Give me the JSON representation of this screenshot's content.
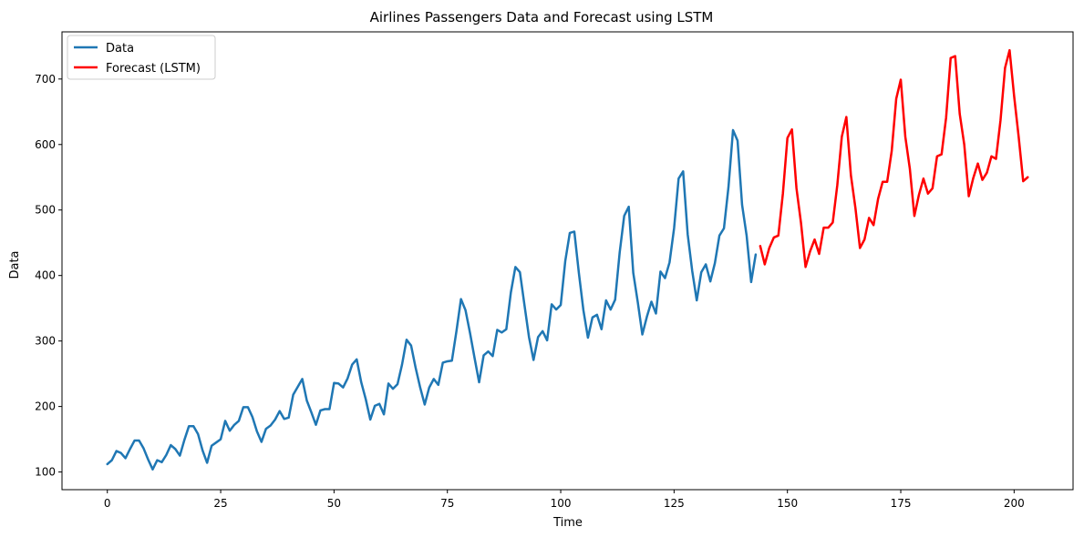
{
  "chart_data": {
    "type": "line",
    "title": "Airlines Passengers Data and Forecast using LSTM",
    "xlabel": "Time",
    "ylabel": "Data",
    "xlim": [
      -10,
      213
    ],
    "ylim": [
      73,
      772
    ],
    "xticks": [
      0,
      25,
      50,
      75,
      100,
      125,
      150,
      175,
      200
    ],
    "yticks": [
      100,
      200,
      300,
      400,
      500,
      600,
      700
    ],
    "grid": false,
    "legend_position": "top-left",
    "series": [
      {
        "name": "Data",
        "color": "#1f77b4",
        "x_start": 0,
        "values": [
          112,
          118,
          132,
          129,
          121,
          135,
          148,
          148,
          136,
          119,
          104,
          118,
          115,
          126,
          141,
          135,
          125,
          149,
          170,
          170,
          158,
          133,
          114,
          140,
          145,
          150,
          178,
          163,
          172,
          178,
          199,
          199,
          184,
          162,
          146,
          166,
          171,
          180,
          193,
          181,
          183,
          218,
          230,
          242,
          209,
          191,
          172,
          194,
          196,
          196,
          236,
          235,
          229,
          243,
          264,
          272,
          237,
          211,
          180,
          201,
          204,
          188,
          235,
          227,
          234,
          264,
          302,
          293,
          259,
          229,
          203,
          229,
          242,
          233,
          267,
          269,
          270,
          315,
          364,
          347,
          312,
          274,
          237,
          278,
          284,
          277,
          317,
          313,
          318,
          374,
          413,
          405,
          355,
          306,
          271,
          306,
          315,
          301,
          356,
          348,
          355,
          422,
          465,
          467,
          404,
          347,
          305,
          336,
          340,
          318,
          362,
          348,
          363,
          435,
          491,
          505,
          404,
          359,
          310,
          337,
          360,
          342,
          406,
          396,
          420,
          472,
          548,
          559,
          463,
          407,
          362,
          405,
          417,
          391,
          419,
          461,
          472,
          535,
          622,
          606,
          508,
          461,
          390,
          432
        ]
      },
      {
        "name": "Forecast (LSTM)",
        "color": "#ff0000",
        "x_start": 144,
        "values": [
          445,
          417,
          442,
          458,
          461,
          525,
          610,
          623,
          533,
          480,
          413,
          437,
          455,
          433,
          473,
          473,
          481,
          538,
          612,
          642,
          553,
          503,
          442,
          455,
          488,
          477,
          517,
          543,
          543,
          590,
          670,
          699,
          612,
          563,
          491,
          523,
          548,
          525,
          533,
          582,
          585,
          641,
          732,
          735,
          647,
          600,
          521,
          549,
          571,
          546,
          557,
          582,
          578,
          637,
          717,
          744,
          674,
          612,
          544,
          550
        ]
      }
    ]
  }
}
